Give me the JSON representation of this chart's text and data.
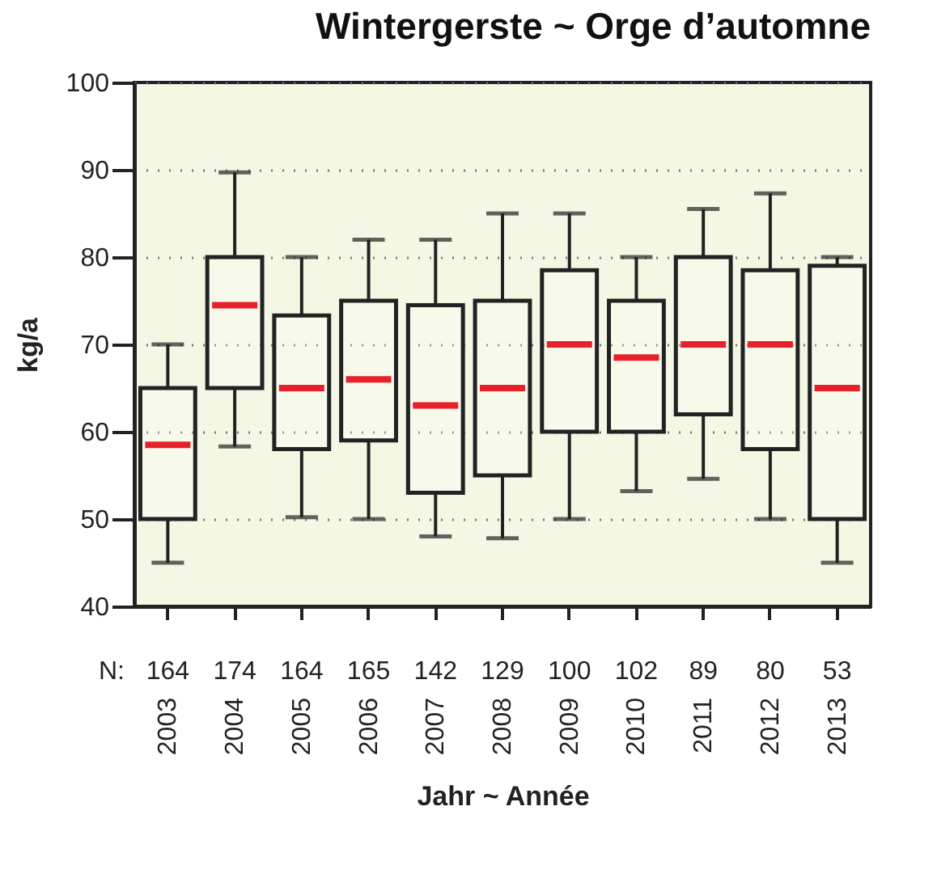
{
  "chart_data": {
    "type": "box",
    "title": "Wintergerste ~ Orge d’automne",
    "xlabel": "Jahr ~ Année",
    "ylabel": "kg/a",
    "categories": [
      "2003",
      "2004",
      "2005",
      "2006",
      "2007",
      "2008",
      "2009",
      "2010",
      "2011",
      "2012",
      "2013"
    ],
    "series": [
      {
        "color": "#222222",
        "boxes": [
          {
            "low": 45,
            "q1": 50,
            "median": 58.5,
            "q3": 65,
            "high": 70
          },
          {
            "low": 58.3,
            "q1": 65,
            "median": 74.5,
            "q3": 80,
            "high": 89.7
          },
          {
            "low": 50.2,
            "q1": 58,
            "median": 65,
            "q3": 73.3,
            "high": 80
          },
          {
            "low": 50,
            "q1": 59,
            "median": 66,
            "q3": 75,
            "high": 82
          },
          {
            "low": 48,
            "q1": 53,
            "median": 63,
            "q3": 74.5,
            "high": 82
          },
          {
            "low": 47.8,
            "q1": 55,
            "median": 65,
            "q3": 75,
            "high": 85
          },
          {
            "low": 50,
            "q1": 60,
            "median": 70,
            "q3": 78.5,
            "high": 85
          },
          {
            "low": 53.2,
            "q1": 60,
            "median": 68.5,
            "q3": 75,
            "high": 80
          },
          {
            "low": 54.6,
            "q1": 62,
            "median": 70,
            "q3": 80,
            "high": 85.5
          },
          {
            "low": 50,
            "q1": 58,
            "median": 70,
            "q3": 78.5,
            "high": 87.3
          },
          {
            "low": 45,
            "q1": 50,
            "median": 65,
            "q3": 79,
            "high": 80
          }
        ]
      }
    ],
    "ylim": [
      40,
      100
    ],
    "yticks": [
      40,
      50,
      60,
      70,
      80,
      90,
      100
    ],
    "grid": "y",
    "annotations": [
      "N:",
      "164",
      "174",
      "164",
      "165",
      "142",
      "129",
      "100",
      "102",
      "89",
      "80",
      "53"
    ]
  }
}
